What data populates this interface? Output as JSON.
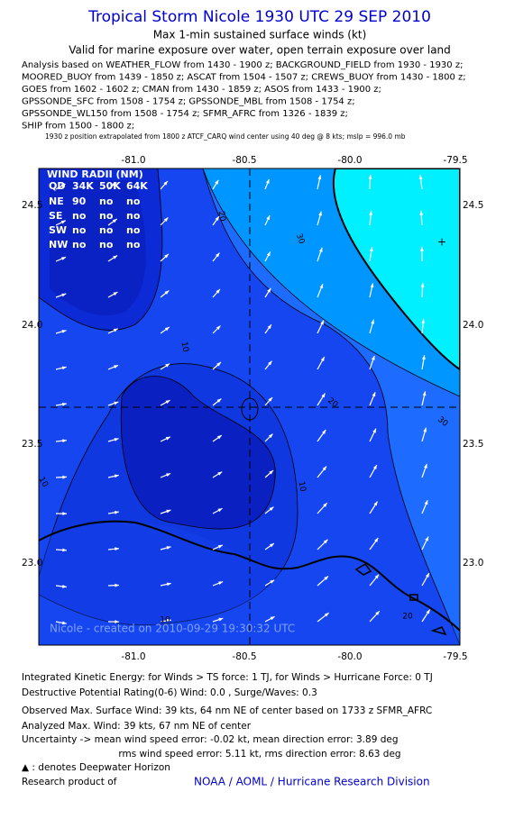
{
  "header": {
    "title": "Tropical Storm Nicole 1930 UTC 29 SEP 2010",
    "subtitle": "Max 1-min sustained surface winds (kt)",
    "validity": "Valid for marine exposure over water, open terrain exposure over land",
    "analysis_lines": [
      "Analysis based on WEATHER_FLOW from 1430 - 1900 z; BACKGROUND_FIELD from 1930 - 1930 z;",
      "MOORED_BUOY from 1439 - 1850 z; ASCAT from 1504 - 1507 z; CREWS_BUOY from 1430 - 1800 z;",
      "GOES from 1602 - 1602 z; CMAN from 1430 - 1859 z; ASOS from 1433 - 1900 z;",
      "GPSSONDE_SFC from 1508 - 1754 z; GPSSONDE_MBL from 1508 - 1754 z;",
      "GPSSONDE_WL150 from 1508 - 1754 z; SFMR_AFRC from 1326 - 1839 z;",
      "SHIP from 1500 - 1800 z;"
    ],
    "note": "1930 z position extrapolated from 1800 z ATCF_CARQ wind center using 40 deg @ 8 kts; mslp = 996.0 mb"
  },
  "map": {
    "lon_labels": [
      "-81.0",
      "-80.5",
      "-80.0",
      "-79.5"
    ],
    "lat_labels": [
      "24.5",
      "24.0",
      "23.5",
      "23.0"
    ],
    "contour_labels": [
      "20",
      "30",
      "10",
      "20",
      "30",
      "10",
      "10",
      "20",
      "10"
    ],
    "wind_radii": {
      "title": "WIND RADII (NM)",
      "header": [
        "QD",
        "34K",
        "50K",
        "64K"
      ],
      "rows": [
        [
          "NE",
          "90",
          "no",
          "no"
        ],
        [
          "SE",
          "no",
          "no",
          "no"
        ],
        [
          "SW",
          "no",
          "no",
          "no"
        ],
        [
          "NW",
          "no",
          "no",
          "no"
        ]
      ]
    },
    "watermark": "Nicole - created on 2010-09-29 19:30:32 UTC"
  },
  "footer": {
    "lines": [
      "Integrated Kinetic Energy:  for Winds > TS force: 1 TJ,  for Winds > Hurricane Force: 0 TJ",
      "Destructive Potential Rating(0-6)   Wind: 0.0 , Surge/Waves: 0.3",
      "Observed Max. Surface Wind: 39 kts, 64 nm NE of center based on 1733 z SFMR_AFRC",
      "Analyzed Max. Wind: 39 kts, 67 nm NE of center",
      "Uncertainty -> mean wind speed error:  -0.02 kt,   mean direction error: 3.89 deg",
      "rms wind speed error:  5.11 kt,   rms direction error: 8.63 deg",
      "▲ : denotes Deepwater Horizon"
    ],
    "credit_prefix": "Research product of",
    "credit": "NOAA / AOML / Hurricane Research Division"
  }
}
